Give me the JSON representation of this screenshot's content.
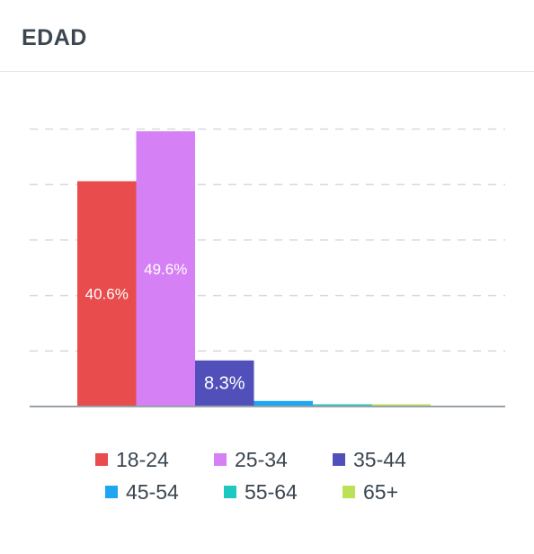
{
  "card": {
    "title": "EDAD"
  },
  "chart_data": {
    "type": "bar",
    "title": "",
    "xlabel": "",
    "ylabel": "",
    "ylim": [
      0,
      50
    ],
    "grid": true,
    "legend_placement": "bottom",
    "categories": [
      "18-24",
      "25-34",
      "35-44",
      "45-54",
      "55-64",
      "65+"
    ],
    "values": [
      40.6,
      49.6,
      8.3,
      1.0,
      0.4,
      0.4
    ],
    "data_labels": [
      "40.6%",
      "49.6%",
      "8.3%",
      "",
      "",
      ""
    ],
    "colors": [
      "#e84c4c",
      "#d680f5",
      "#5150ba",
      "#1ea6f2",
      "#1dc8c0",
      "#bde156"
    ]
  }
}
